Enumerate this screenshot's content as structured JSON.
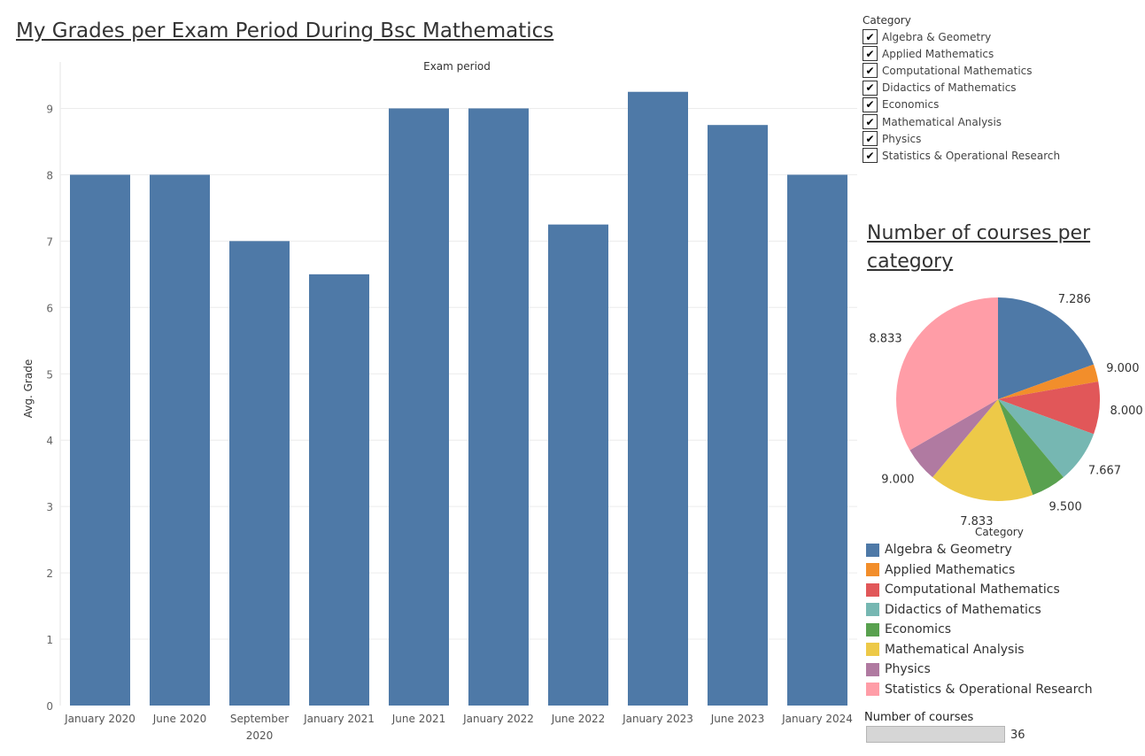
{
  "title": "My Grades per Exam Period During Bsc Mathematics",
  "filter": {
    "title": "Category",
    "items": [
      {
        "label": "Algebra & Geometry",
        "checked": true
      },
      {
        "label": "Applied Mathematics",
        "checked": true
      },
      {
        "label": "Computational Mathematics",
        "checked": true
      },
      {
        "label": "Didactics of Mathematics",
        "checked": true
      },
      {
        "label": "Economics",
        "checked": true
      },
      {
        "label": "Mathematical Analysis",
        "checked": true
      },
      {
        "label": "Physics",
        "checked": true
      },
      {
        "label": "Statistics & Operational Research",
        "checked": true
      }
    ]
  },
  "pie_title": "Number of courses per category",
  "legend": {
    "title": "Category",
    "items": [
      {
        "label": "Algebra & Geometry",
        "color": "#4e79a7"
      },
      {
        "label": "Applied Mathematics",
        "color": "#f28e2b"
      },
      {
        "label": "Computational Mathematics",
        "color": "#e15759"
      },
      {
        "label": "Didactics of Mathematics",
        "color": "#76b7b2"
      },
      {
        "label": "Economics",
        "color": "#59a14f"
      },
      {
        "label": "Mathematical Analysis",
        "color": "#edc948"
      },
      {
        "label": "Physics",
        "color": "#b07aa1"
      },
      {
        "label": "Statistics & Operational Research",
        "color": "#ff9da7"
      }
    ]
  },
  "size_legend": {
    "title": "Number of courses",
    "value": "36"
  },
  "chart_data": [
    {
      "type": "bar",
      "xlabel": "Exam period",
      "ylabel": "Avg. Grade",
      "categories": [
        "January 2020",
        "June 2020",
        "September 2020",
        "January 2021",
        "June 2021",
        "January 2022",
        "June 2022",
        "January 2023",
        "June 2023",
        "January 2024"
      ],
      "values": [
        8.0,
        8.0,
        7.0,
        6.5,
        9.0,
        9.0,
        7.25,
        9.25,
        8.75,
        8.0
      ],
      "ylim": [
        0,
        9.7
      ],
      "yticks": [
        0,
        1,
        2,
        3,
        4,
        5,
        6,
        7,
        8,
        9
      ],
      "bar_color": "#4e79a7",
      "grid": true
    },
    {
      "type": "pie",
      "title": "Number of courses per category",
      "categories": [
        "Algebra & Geometry",
        "Applied Mathematics",
        "Computational Mathematics",
        "Didactics of Mathematics",
        "Economics",
        "Mathematical Analysis",
        "Physics",
        "Statistics & Operational Research"
      ],
      "course_counts": [
        7,
        1,
        3,
        3,
        2,
        6,
        2,
        12
      ],
      "labels": [
        "7.286",
        "9.000",
        "8.000",
        "7.667",
        "9.500",
        "7.833",
        "9.000",
        "8.833"
      ],
      "colors": [
        "#4e79a7",
        "#f28e2b",
        "#e15759",
        "#76b7b2",
        "#59a14f",
        "#edc948",
        "#b07aa1",
        "#ff9da7"
      ],
      "total_courses": 36
    }
  ]
}
